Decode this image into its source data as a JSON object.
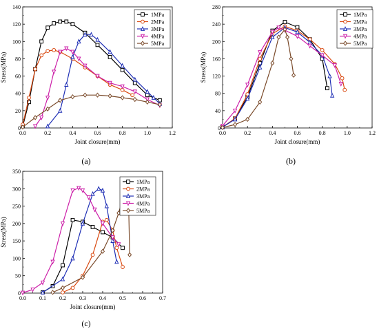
{
  "chart_data": [
    {
      "type": "line",
      "panel_label": "(a)",
      "xlabel": "Joint closure(mm)",
      "ylabel": "Stress(MPa)",
      "xlim": [
        0,
        1.2
      ],
      "ylim": [
        0,
        140
      ],
      "xticks": [
        "0.0",
        "0.2",
        "0.4",
        "0.6",
        "0.8",
        "1.0",
        "1.2"
      ],
      "yticks": [
        "0",
        "20",
        "40",
        "60",
        "80",
        "100",
        "120",
        "140"
      ],
      "legend_position": "top-right",
      "series": [
        {
          "name": "1MPa",
          "color": "#000000",
          "marker": "square",
          "x": [
            0.0,
            0.05,
            0.1,
            0.15,
            0.2,
            0.25,
            0.3,
            0.35,
            0.4,
            0.5,
            0.6,
            0.7,
            0.8,
            0.9,
            1.0,
            1.1
          ],
          "y": [
            2,
            30,
            68,
            100,
            116,
            121,
            123,
            123,
            120,
            110,
            96,
            82,
            67,
            52,
            38,
            32
          ]
        },
        {
          "name": "2MPa",
          "color": "#d9480f",
          "marker": "circle",
          "x": [
            0.0,
            0.05,
            0.1,
            0.15,
            0.2,
            0.25,
            0.3,
            0.4,
            0.5,
            0.6,
            0.7,
            0.8,
            0.88
          ],
          "y": [
            4,
            35,
            68,
            84,
            89,
            90,
            88,
            80,
            70,
            60,
            50,
            44,
            38
          ]
        },
        {
          "name": "3MPa",
          "color": "#1f2fb5",
          "marker": "triangle-up",
          "x": [
            0.2,
            0.3,
            0.35,
            0.4,
            0.45,
            0.5,
            0.55,
            0.6,
            0.7,
            0.8,
            0.9,
            1.0,
            1.05,
            1.1
          ],
          "y": [
            2,
            20,
            50,
            82,
            100,
            108,
            108,
            102,
            88,
            72,
            56,
            42,
            35,
            28
          ]
        },
        {
          "name": "4MPa",
          "color": "#cc1fa8",
          "marker": "triangle-down",
          "x": [
            0.1,
            0.15,
            0.2,
            0.25,
            0.3,
            0.35,
            0.4,
            0.45,
            0.5,
            0.6,
            0.7,
            0.8,
            0.9,
            1.0,
            1.1
          ],
          "y": [
            2,
            12,
            35,
            65,
            88,
            92,
            88,
            80,
            72,
            60,
            52,
            48,
            42,
            33,
            26
          ]
        },
        {
          "name": "5MPa",
          "color": "#7a4a2a",
          "marker": "diamond",
          "x": [
            0.0,
            0.1,
            0.2,
            0.3,
            0.4,
            0.5,
            0.6,
            0.7,
            0.8,
            0.9,
            1.0,
            1.1
          ],
          "y": [
            1,
            12,
            22,
            32,
            36,
            38,
            38,
            37,
            35,
            33,
            30,
            27
          ]
        }
      ]
    },
    {
      "type": "line",
      "panel_label": "(b)",
      "xlabel": "Joint closure(mm)",
      "ylabel": "Stress(MPa)",
      "xlim": [
        0,
        1.2
      ],
      "ylim": [
        0,
        280
      ],
      "xticks": [
        "0.0",
        "0.2",
        "0.4",
        "0.6",
        "0.8",
        "1.0",
        "1.2"
      ],
      "yticks": [
        "0",
        "40",
        "80",
        "120",
        "160",
        "200",
        "240",
        "280"
      ],
      "legend_position": "top-right",
      "series": [
        {
          "name": "1MPa",
          "color": "#000000",
          "marker": "square",
          "x": [
            0.0,
            0.1,
            0.2,
            0.3,
            0.4,
            0.5,
            0.6,
            0.7,
            0.8,
            0.84
          ],
          "y": [
            2,
            22,
            72,
            150,
            225,
            245,
            233,
            205,
            160,
            92
          ]
        },
        {
          "name": "2MPa",
          "color": "#d9480f",
          "marker": "circle",
          "x": [
            0.0,
            0.1,
            0.2,
            0.3,
            0.4,
            0.5,
            0.6,
            0.7,
            0.8,
            0.9,
            0.96,
            0.98
          ],
          "y": [
            2,
            22,
            78,
            160,
            218,
            235,
            225,
            205,
            180,
            148,
            115,
            88
          ]
        },
        {
          "name": "3MPa",
          "color": "#1f2fb5",
          "marker": "triangle-up",
          "x": [
            0.0,
            0.1,
            0.2,
            0.3,
            0.4,
            0.5,
            0.6,
            0.7,
            0.8,
            0.86,
            0.88
          ],
          "y": [
            2,
            20,
            68,
            140,
            210,
            232,
            222,
            198,
            168,
            120,
            75
          ]
        },
        {
          "name": "4MPa",
          "color": "#cc1fa8",
          "marker": "triangle-down",
          "x": [
            0.0,
            0.1,
            0.2,
            0.3,
            0.4,
            0.45,
            0.5,
            0.6,
            0.7,
            0.8,
            0.9,
            0.95
          ],
          "y": [
            5,
            40,
            100,
            175,
            222,
            232,
            226,
            212,
            190,
            168,
            145,
            102
          ]
        },
        {
          "name": "5MPa",
          "color": "#7a4a2a",
          "marker": "diamond",
          "x": [
            0.0,
            0.1,
            0.2,
            0.3,
            0.4,
            0.45,
            0.5,
            0.52,
            0.55,
            0.57
          ],
          "y": [
            1,
            8,
            20,
            60,
            150,
            210,
            228,
            210,
            160,
            122
          ]
        }
      ]
    },
    {
      "type": "line",
      "panel_label": "(c)",
      "xlabel": "Joint closure(mm)",
      "ylabel": "Stress(MPa)",
      "xlim": [
        0,
        0.7
      ],
      "ylim": [
        0,
        350
      ],
      "xticks": [
        "0.0",
        "0.1",
        "0.2",
        "0.3",
        "0.4",
        "0.5",
        "0.6",
        "0.7"
      ],
      "yticks": [
        "0",
        "50",
        "100",
        "150",
        "200",
        "250",
        "300",
        "350"
      ],
      "legend_position": "top-right",
      "series": [
        {
          "name": "1MPa",
          "color": "#000000",
          "marker": "square",
          "x": [
            0.1,
            0.15,
            0.2,
            0.25,
            0.3,
            0.35,
            0.4,
            0.45,
            0.5
          ],
          "y": [
            2,
            20,
            80,
            210,
            205,
            190,
            175,
            160,
            130
          ]
        },
        {
          "name": "2MPa",
          "color": "#d9480f",
          "marker": "circle",
          "x": [
            0.2,
            0.25,
            0.3,
            0.35,
            0.4,
            0.42,
            0.45,
            0.47,
            0.5
          ],
          "y": [
            2,
            15,
            50,
            110,
            205,
            210,
            180,
            130,
            75
          ]
        },
        {
          "name": "3MPa",
          "color": "#1f2fb5",
          "marker": "triangle-up",
          "x": [
            0.1,
            0.2,
            0.25,
            0.3,
            0.35,
            0.38,
            0.4,
            0.42,
            0.45,
            0.47
          ],
          "y": [
            2,
            40,
            100,
            200,
            285,
            300,
            295,
            250,
            150,
            90
          ]
        },
        {
          "name": "4MPa",
          "color": "#cc1fa8",
          "marker": "triangle-down",
          "x": [
            0.0,
            0.05,
            0.1,
            0.15,
            0.2,
            0.25,
            0.28,
            0.3,
            0.33,
            0.36,
            0.4,
            0.45,
            0.48
          ],
          "y": [
            1,
            10,
            30,
            90,
            200,
            295,
            302,
            295,
            275,
            240,
            200,
            160,
            140
          ]
        },
        {
          "name": "5MPa",
          "color": "#7a4a2a",
          "marker": "diamond",
          "x": [
            0.15,
            0.2,
            0.3,
            0.4,
            0.45,
            0.48,
            0.5,
            0.52,
            0.53,
            0.535
          ],
          "y": [
            2,
            15,
            45,
            120,
            180,
            230,
            270,
            285,
            250,
            110
          ]
        }
      ]
    }
  ]
}
